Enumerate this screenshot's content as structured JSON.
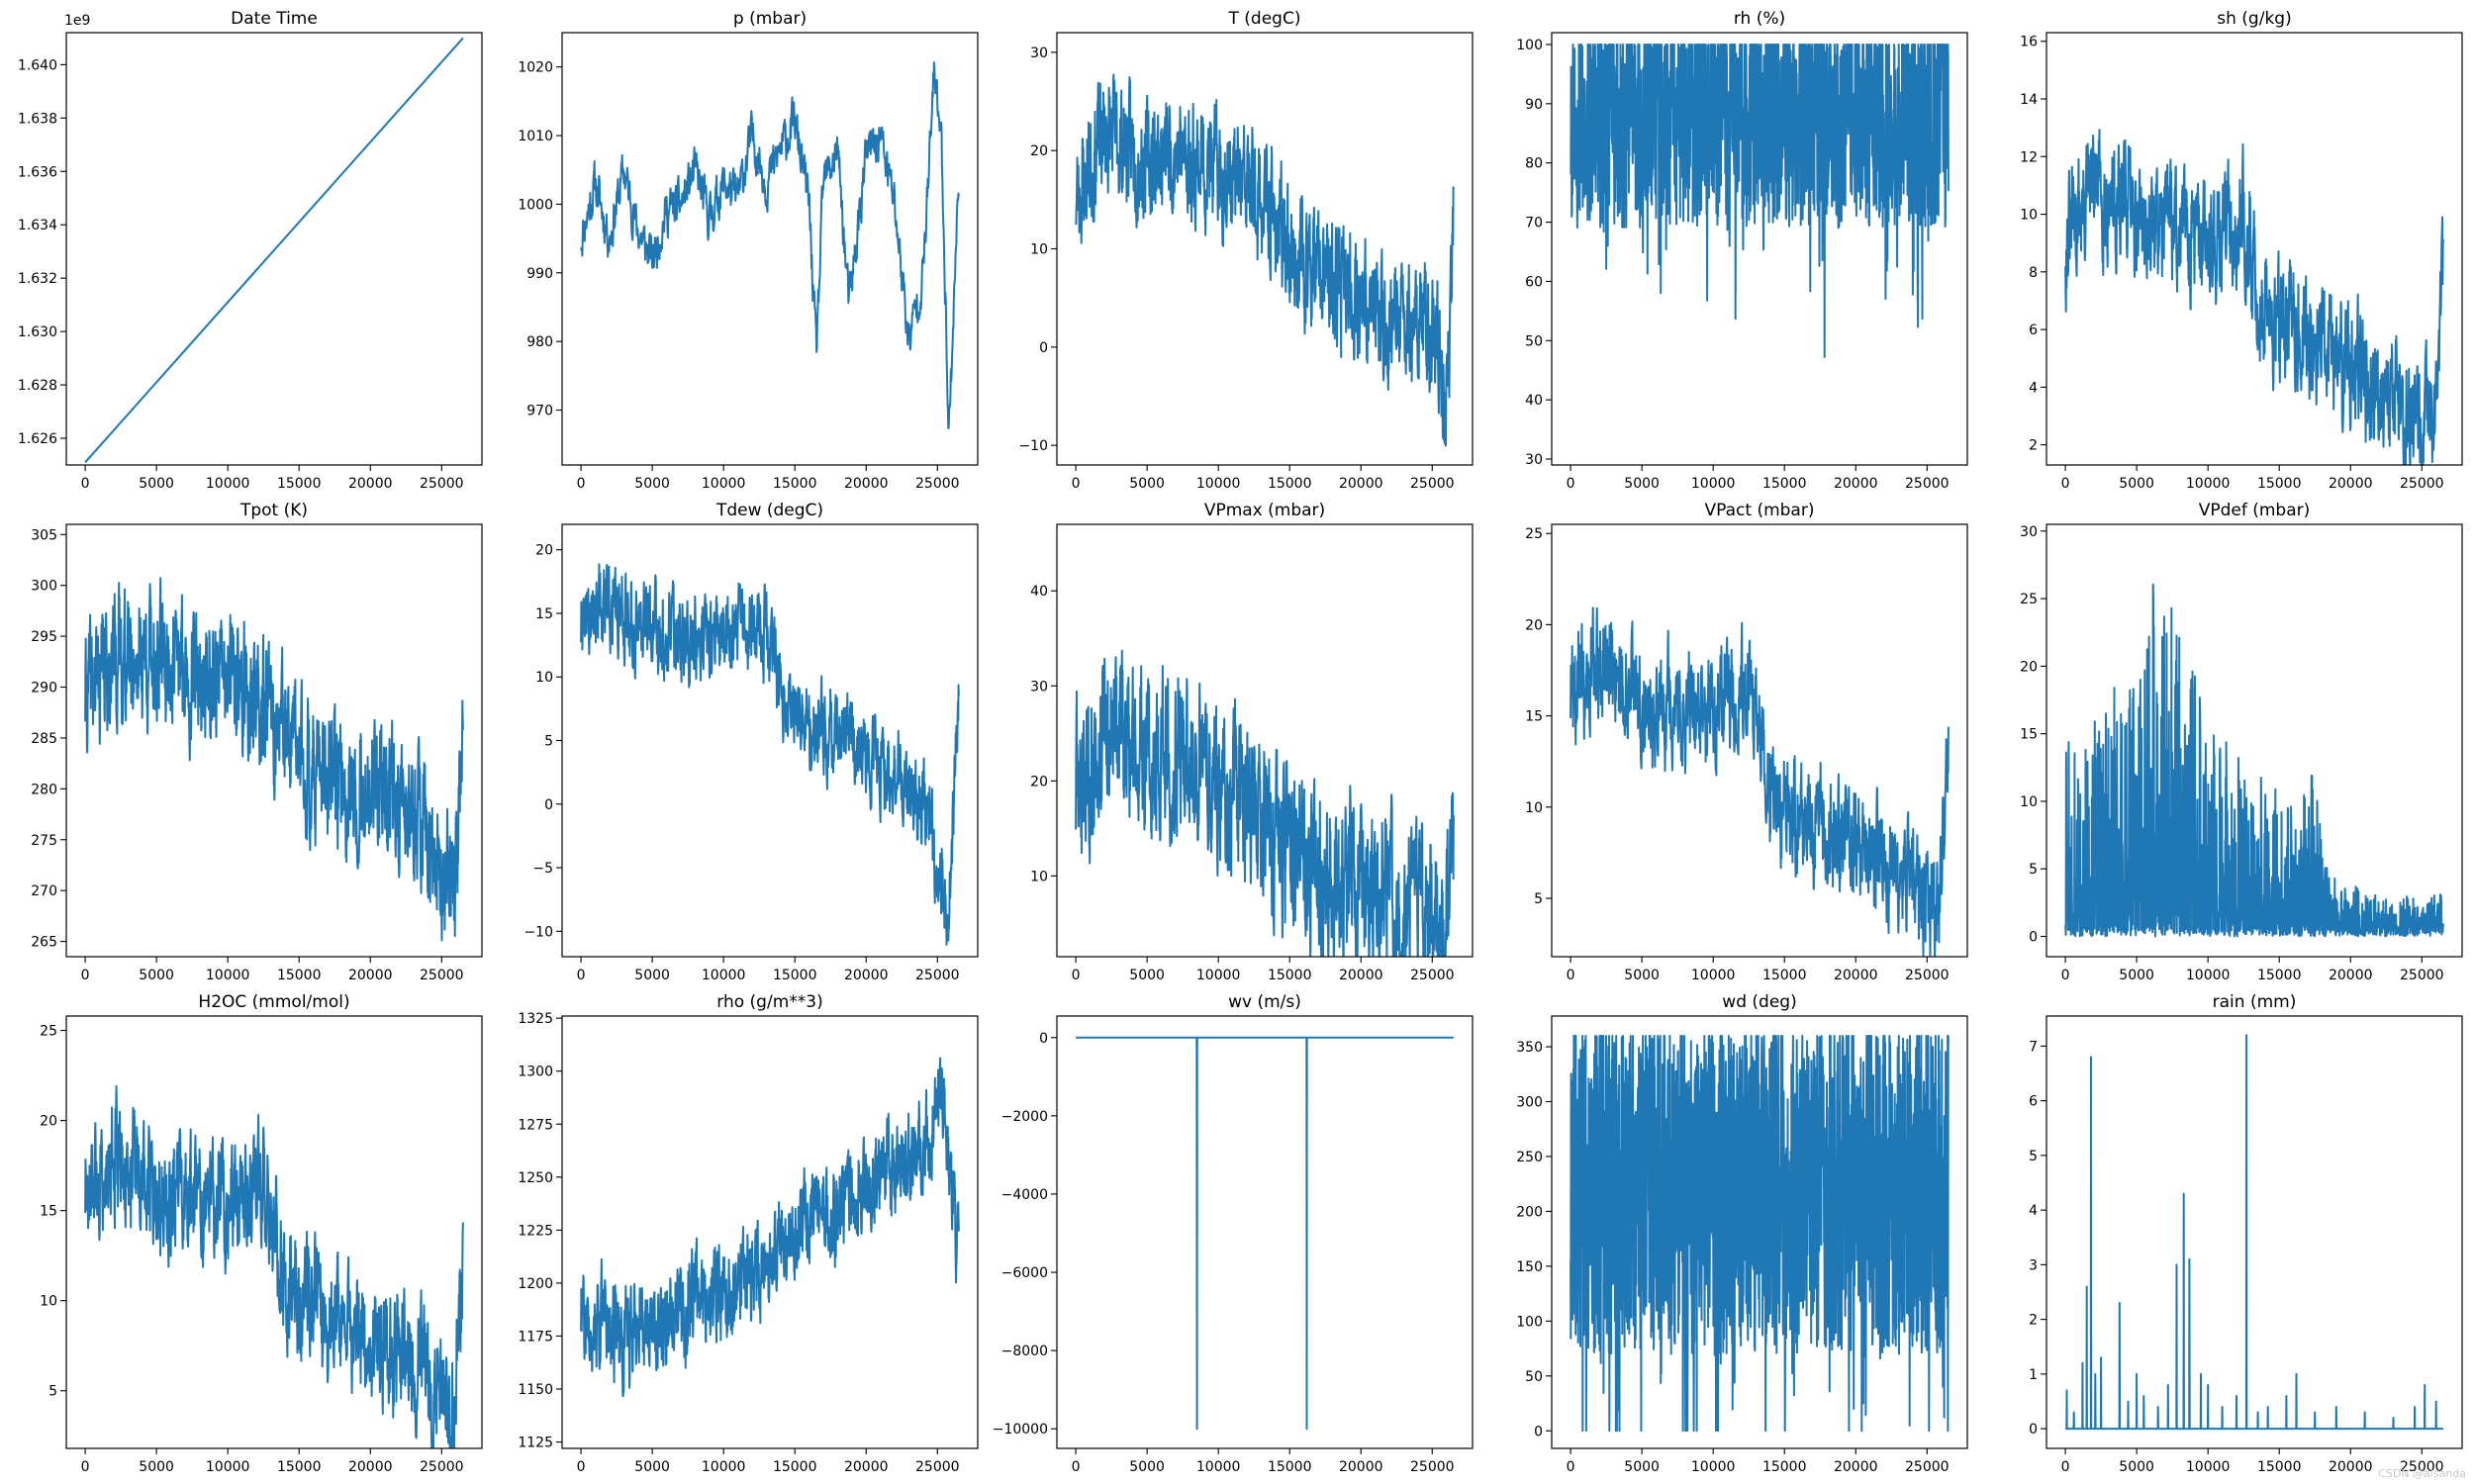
{
  "credit": "CSDN @alsanda",
  "chart_data": [
    {
      "type": "line",
      "title": "Date Time",
      "x_range": [
        0,
        26500
      ],
      "ylim": [
        1.625,
        1.6412
      ],
      "offset_label": "1e9",
      "xticks": [
        0,
        5000,
        10000,
        15000,
        20000,
        25000
      ],
      "yticks": [
        1.626,
        1.628,
        1.63,
        1.632,
        1.634,
        1.636,
        1.638,
        1.64
      ],
      "tick_decimals": 3,
      "kind": "linear",
      "params": {
        "start": 1.6251,
        "end": 1.641
      }
    },
    {
      "type": "line",
      "title": "p (mbar)",
      "x_range": [
        0,
        26500
      ],
      "ylim": [
        962,
        1025
      ],
      "xticks": [
        0,
        5000,
        10000,
        15000,
        20000,
        25000
      ],
      "yticks": [
        970,
        980,
        990,
        1000,
        1010,
        1020
      ],
      "kind": "random",
      "params": {
        "anchors": [
          [
            0,
            995
          ],
          [
            1000,
            1003
          ],
          [
            2000,
            995
          ],
          [
            3000,
            1005
          ],
          [
            4000,
            996
          ],
          [
            5000,
            992
          ],
          [
            6000,
            999
          ],
          [
            7000,
            1000
          ],
          [
            8000,
            1005
          ],
          [
            9000,
            998
          ],
          [
            10000,
            1003
          ],
          [
            11000,
            1001
          ],
          [
            12000,
            1010
          ],
          [
            13000,
            1003
          ],
          [
            14000,
            1008
          ],
          [
            15000,
            1012
          ],
          [
            16000,
            1000
          ],
          [
            16500,
            978
          ],
          [
            17000,
            1003
          ],
          [
            18000,
            1008
          ],
          [
            18800,
            985
          ],
          [
            20000,
            1007
          ],
          [
            21000,
            1010
          ],
          [
            22000,
            1000
          ],
          [
            23000,
            980
          ],
          [
            24000,
            990
          ],
          [
            24800,
            1020
          ],
          [
            25300,
            1008
          ],
          [
            25800,
            967
          ],
          [
            26500,
            1004
          ]
        ],
        "amp": 2.6,
        "n": 900,
        "seed": 11
      }
    },
    {
      "type": "line",
      "title": "T (degC)",
      "x_range": [
        0,
        26500
      ],
      "ylim": [
        -12,
        32
      ],
      "xticks": [
        0,
        5000,
        10000,
        15000,
        20000,
        25000
      ],
      "yticks": [
        -10,
        0,
        10,
        20,
        30
      ],
      "kind": "random",
      "params": {
        "anchors": [
          [
            0,
            15
          ],
          [
            2000,
            22
          ],
          [
            5000,
            19
          ],
          [
            7000,
            20
          ],
          [
            10000,
            18
          ],
          [
            13000,
            15
          ],
          [
            15000,
            10
          ],
          [
            18000,
            6
          ],
          [
            20000,
            5
          ],
          [
            22000,
            2
          ],
          [
            24000,
            3
          ],
          [
            25500,
            0
          ],
          [
            26000,
            -8
          ],
          [
            26500,
            14
          ]
        ],
        "amp": 4.6,
        "n": 1300,
        "seed": 23
      }
    },
    {
      "type": "line",
      "title": "rh (%)",
      "x_range": [
        0,
        26500
      ],
      "ylim": [
        29,
        102
      ],
      "xticks": [
        0,
        5000,
        10000,
        15000,
        20000,
        25000
      ],
      "yticks": [
        30,
        40,
        50,
        60,
        70,
        80,
        90,
        100
      ],
      "kind": "band",
      "params": {
        "center": 88,
        "amp": 19,
        "lo": 34,
        "hi": 100,
        "n": 1400,
        "seed": 5
      }
    },
    {
      "type": "line",
      "title": "sh (g/kg)",
      "x_range": [
        0,
        26500
      ],
      "ylim": [
        1.3,
        16.3
      ],
      "xticks": [
        0,
        5000,
        10000,
        15000,
        20000,
        25000
      ],
      "yticks": [
        2,
        4,
        6,
        8,
        10,
        12,
        14,
        16
      ],
      "kind": "random",
      "params": {
        "anchors": [
          [
            0,
            9
          ],
          [
            2000,
            11
          ],
          [
            5000,
            10
          ],
          [
            8000,
            9.5
          ],
          [
            10000,
            9
          ],
          [
            12500,
            10
          ],
          [
            13500,
            7
          ],
          [
            16000,
            6
          ],
          [
            19000,
            5
          ],
          [
            22000,
            4.2
          ],
          [
            25000,
            3.2
          ],
          [
            25700,
            2
          ],
          [
            26500,
            7.5
          ]
        ],
        "amp": 1.6,
        "n": 1200,
        "seed": 31
      }
    },
    {
      "type": "line",
      "title": "Tpot (K)",
      "x_range": [
        0,
        26500
      ],
      "ylim": [
        263.5,
        306
      ],
      "xticks": [
        0,
        5000,
        10000,
        15000,
        20000,
        25000
      ],
      "yticks": [
        265,
        270,
        275,
        280,
        285,
        290,
        295,
        300,
        305
      ],
      "kind": "random",
      "params": {
        "anchors": [
          [
            0,
            289
          ],
          [
            2000,
            293
          ],
          [
            5000,
            293
          ],
          [
            8000,
            291
          ],
          [
            10000,
            291
          ],
          [
            13000,
            287
          ],
          [
            15000,
            283
          ],
          [
            18000,
            280
          ],
          [
            20000,
            280
          ],
          [
            22000,
            278
          ],
          [
            24000,
            276
          ],
          [
            25500,
            270
          ],
          [
            26000,
            272
          ],
          [
            26500,
            287
          ]
        ],
        "amp": 4.8,
        "n": 1300,
        "seed": 41
      }
    },
    {
      "type": "line",
      "title": "Tdew (degC)",
      "x_range": [
        0,
        26500
      ],
      "ylim": [
        -12,
        22
      ],
      "xticks": [
        0,
        5000,
        10000,
        15000,
        20000,
        25000
      ],
      "yticks": [
        -10,
        -5,
        0,
        5,
        10,
        15,
        20
      ],
      "kind": "random",
      "params": {
        "anchors": [
          [
            0,
            14
          ],
          [
            2000,
            16
          ],
          [
            5000,
            14
          ],
          [
            8000,
            13
          ],
          [
            10000,
            13
          ],
          [
            12500,
            15
          ],
          [
            14000,
            9
          ],
          [
            16000,
            6
          ],
          [
            19000,
            5
          ],
          [
            22000,
            2
          ],
          [
            24000,
            0
          ],
          [
            25800,
            -8
          ],
          [
            26500,
            10
          ]
        ],
        "amp": 2.6,
        "n": 1200,
        "seed": 52
      }
    },
    {
      "type": "line",
      "title": "VPmax (mbar)",
      "x_range": [
        0,
        26500
      ],
      "ylim": [
        1.5,
        47
      ],
      "xticks": [
        0,
        5000,
        10000,
        15000,
        20000,
        25000
      ],
      "yticks": [
        10,
        20,
        30,
        40
      ],
      "kind": "random",
      "params": {
        "anchors": [
          [
            0,
            18
          ],
          [
            2000,
            26
          ],
          [
            5000,
            23
          ],
          [
            7000,
            24
          ],
          [
            10000,
            21
          ],
          [
            13000,
            17
          ],
          [
            15000,
            12
          ],
          [
            18000,
            10
          ],
          [
            20000,
            9
          ],
          [
            22000,
            7
          ],
          [
            24000,
            7
          ],
          [
            26000,
            4
          ],
          [
            26500,
            16
          ]
        ],
        "amp": 6.5,
        "n": 1300,
        "seed": 63
      }
    },
    {
      "type": "line",
      "title": "VPact (mbar)",
      "x_range": [
        0,
        26500
      ],
      "ylim": [
        1.8,
        25.5
      ],
      "xticks": [
        0,
        5000,
        10000,
        15000,
        20000,
        25000
      ],
      "yticks": [
        5,
        10,
        15,
        20,
        25
      ],
      "kind": "random",
      "params": {
        "anchors": [
          [
            0,
            16
          ],
          [
            2000,
            18
          ],
          [
            5000,
            16
          ],
          [
            8000,
            15
          ],
          [
            10000,
            15
          ],
          [
            12500,
            16.5
          ],
          [
            14000,
            11
          ],
          [
            16000,
            9
          ],
          [
            19000,
            8.5
          ],
          [
            22000,
            7
          ],
          [
            24000,
            6
          ],
          [
            25800,
            3.5
          ],
          [
            26500,
            12
          ]
        ],
        "amp": 2.4,
        "n": 1200,
        "seed": 74
      }
    },
    {
      "type": "line",
      "title": "VPdef (mbar)",
      "x_range": [
        0,
        26500
      ],
      "ylim": [
        -1.5,
        30.5
      ],
      "xticks": [
        0,
        5000,
        10000,
        15000,
        20000,
        25000
      ],
      "yticks": [
        0,
        5,
        10,
        15,
        20,
        25,
        30
      ],
      "kind": "spiky",
      "params": {
        "max_env": [
          [
            0,
            14
          ],
          [
            5000,
            20
          ],
          [
            6500,
            28
          ],
          [
            10000,
            16
          ],
          [
            15000,
            10
          ],
          [
            17500,
            12
          ],
          [
            18500,
            4
          ],
          [
            22000,
            2.5
          ],
          [
            26500,
            3
          ]
        ],
        "n": 1400,
        "seed": 85
      }
    },
    {
      "type": "line",
      "title": "H2OC (mmol/mol)",
      "x_range": [
        0,
        26500
      ],
      "ylim": [
        1.8,
        25.8
      ],
      "xticks": [
        0,
        5000,
        10000,
        15000,
        20000,
        25000
      ],
      "yticks": [
        5,
        10,
        15,
        20,
        25
      ],
      "kind": "random",
      "params": {
        "anchors": [
          [
            0,
            16
          ],
          [
            2000,
            18.5
          ],
          [
            5000,
            16
          ],
          [
            8000,
            15
          ],
          [
            10000,
            15.5
          ],
          [
            12500,
            17
          ],
          [
            14000,
            11
          ],
          [
            16000,
            9.5
          ],
          [
            19000,
            8.5
          ],
          [
            22000,
            7
          ],
          [
            24000,
            6
          ],
          [
            25800,
            3.5
          ],
          [
            26500,
            12
          ]
        ],
        "amp": 2.5,
        "n": 1200,
        "seed": 96
      }
    },
    {
      "type": "line",
      "title": "rho (g/m**3)",
      "x_range": [
        0,
        26500
      ],
      "ylim": [
        1122,
        1326
      ],
      "xticks": [
        0,
        5000,
        10000,
        15000,
        20000,
        25000
      ],
      "yticks": [
        1125,
        1150,
        1175,
        1200,
        1225,
        1250,
        1275,
        1300,
        1325
      ],
      "kind": "random",
      "params": {
        "anchors": [
          [
            0,
            1185
          ],
          [
            3000,
            1175
          ],
          [
            5000,
            1180
          ],
          [
            8000,
            1190
          ],
          [
            10000,
            1195
          ],
          [
            13000,
            1205
          ],
          [
            15000,
            1230
          ],
          [
            18000,
            1235
          ],
          [
            20000,
            1245
          ],
          [
            22000,
            1255
          ],
          [
            24000,
            1265
          ],
          [
            25500,
            1285
          ],
          [
            26500,
            1210
          ]
        ],
        "amp": 17,
        "n": 1300,
        "seed": 107
      }
    },
    {
      "type": "line",
      "title": "wv (m/s)",
      "x_range": [
        0,
        26500
      ],
      "ylim": [
        -10500,
        550
      ],
      "xticks": [
        0,
        5000,
        10000,
        15000,
        20000,
        25000
      ],
      "yticks": [
        -10000,
        -8000,
        -6000,
        -4000,
        -2000,
        0
      ],
      "kind": "spikes",
      "params": {
        "base": 0,
        "spikes": [
          [
            8500,
            -9999
          ],
          [
            16200,
            -9999
          ]
        ]
      }
    },
    {
      "type": "line",
      "title": "wd (deg)",
      "x_range": [
        0,
        26500
      ],
      "ylim": [
        -16,
        378
      ],
      "xticks": [
        0,
        5000,
        10000,
        15000,
        20000,
        25000
      ],
      "yticks": [
        0,
        50,
        100,
        150,
        200,
        250,
        300,
        350
      ],
      "kind": "band",
      "params": {
        "center": 220,
        "amp": 150,
        "lo": 0,
        "hi": 360,
        "n": 1500,
        "seed": 118
      }
    },
    {
      "type": "line",
      "title": "rain (mm)",
      "x_range": [
        0,
        26500
      ],
      "ylim": [
        -0.36,
        7.55
      ],
      "xticks": [
        0,
        5000,
        10000,
        15000,
        20000,
        25000
      ],
      "yticks": [
        0,
        1,
        2,
        3,
        4,
        5,
        6,
        7
      ],
      "kind": "spikes",
      "params": {
        "base": 0,
        "spikes": [
          [
            100,
            0.7
          ],
          [
            600,
            0.3
          ],
          [
            1200,
            1.2
          ],
          [
            1500,
            2.6
          ],
          [
            1800,
            6.8
          ],
          [
            2100,
            1.0
          ],
          [
            2500,
            1.3
          ],
          [
            3800,
            2.3
          ],
          [
            4400,
            0.5
          ],
          [
            5000,
            1.0
          ],
          [
            5500,
            0.6
          ],
          [
            6500,
            0.4
          ],
          [
            7200,
            0.8
          ],
          [
            7800,
            3.0
          ],
          [
            8300,
            4.3
          ],
          [
            8700,
            3.1
          ],
          [
            9500,
            1.0
          ],
          [
            10000,
            0.8
          ],
          [
            11000,
            0.4
          ],
          [
            12000,
            0.6
          ],
          [
            12700,
            7.2
          ],
          [
            13500,
            0.3
          ],
          [
            14200,
            0.4
          ],
          [
            15500,
            0.6
          ],
          [
            16200,
            1.0
          ],
          [
            17500,
            0.3
          ],
          [
            19000,
            0.4
          ],
          [
            21000,
            0.3
          ],
          [
            23000,
            0.2
          ],
          [
            24500,
            0.4
          ],
          [
            25200,
            0.8
          ],
          [
            26000,
            0.5
          ]
        ]
      }
    }
  ]
}
